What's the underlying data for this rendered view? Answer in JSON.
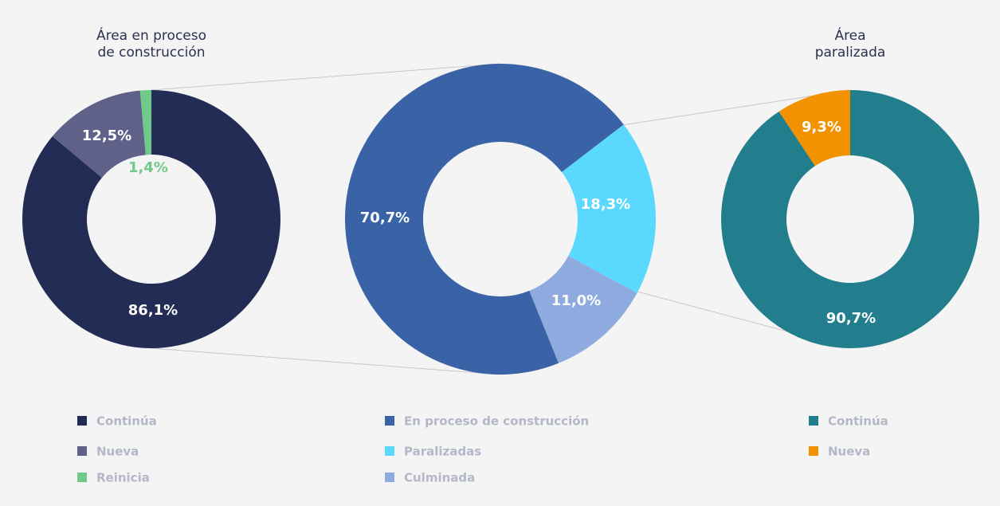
{
  "chart_data": [
    {
      "type": "pie",
      "donut": true,
      "title": [
        "Área en proceso",
        "de construcción"
      ],
      "categories": [
        "Continúa",
        "Nueva",
        "Reinicia"
      ],
      "values": [
        86.1,
        12.5,
        1.4
      ],
      "value_labels": [
        "86,1%",
        "12,5%",
        "1,4%"
      ],
      "colors": [
        "#222c55",
        "#5f6188",
        "#6fc98a"
      ]
    },
    {
      "type": "pie",
      "donut": true,
      "categories": [
        "En proceso de construcción",
        "Paralizadas",
        "Culminada"
      ],
      "values": [
        70.7,
        18.3,
        11.0
      ],
      "value_labels": [
        "70,7%",
        "18,3%",
        "11,0%"
      ],
      "colors": [
        "#3a62a6",
        "#5bd8fd",
        "#8eaadf"
      ]
    },
    {
      "type": "pie",
      "donut": true,
      "title": [
        "Área",
        "paralizada"
      ],
      "categories": [
        "Continúa",
        "Nueva"
      ],
      "values": [
        90.7,
        9.3
      ],
      "value_labels": [
        "90,7%",
        "9,3%"
      ],
      "colors": [
        "#227e8c",
        "#f39200"
      ]
    }
  ]
}
